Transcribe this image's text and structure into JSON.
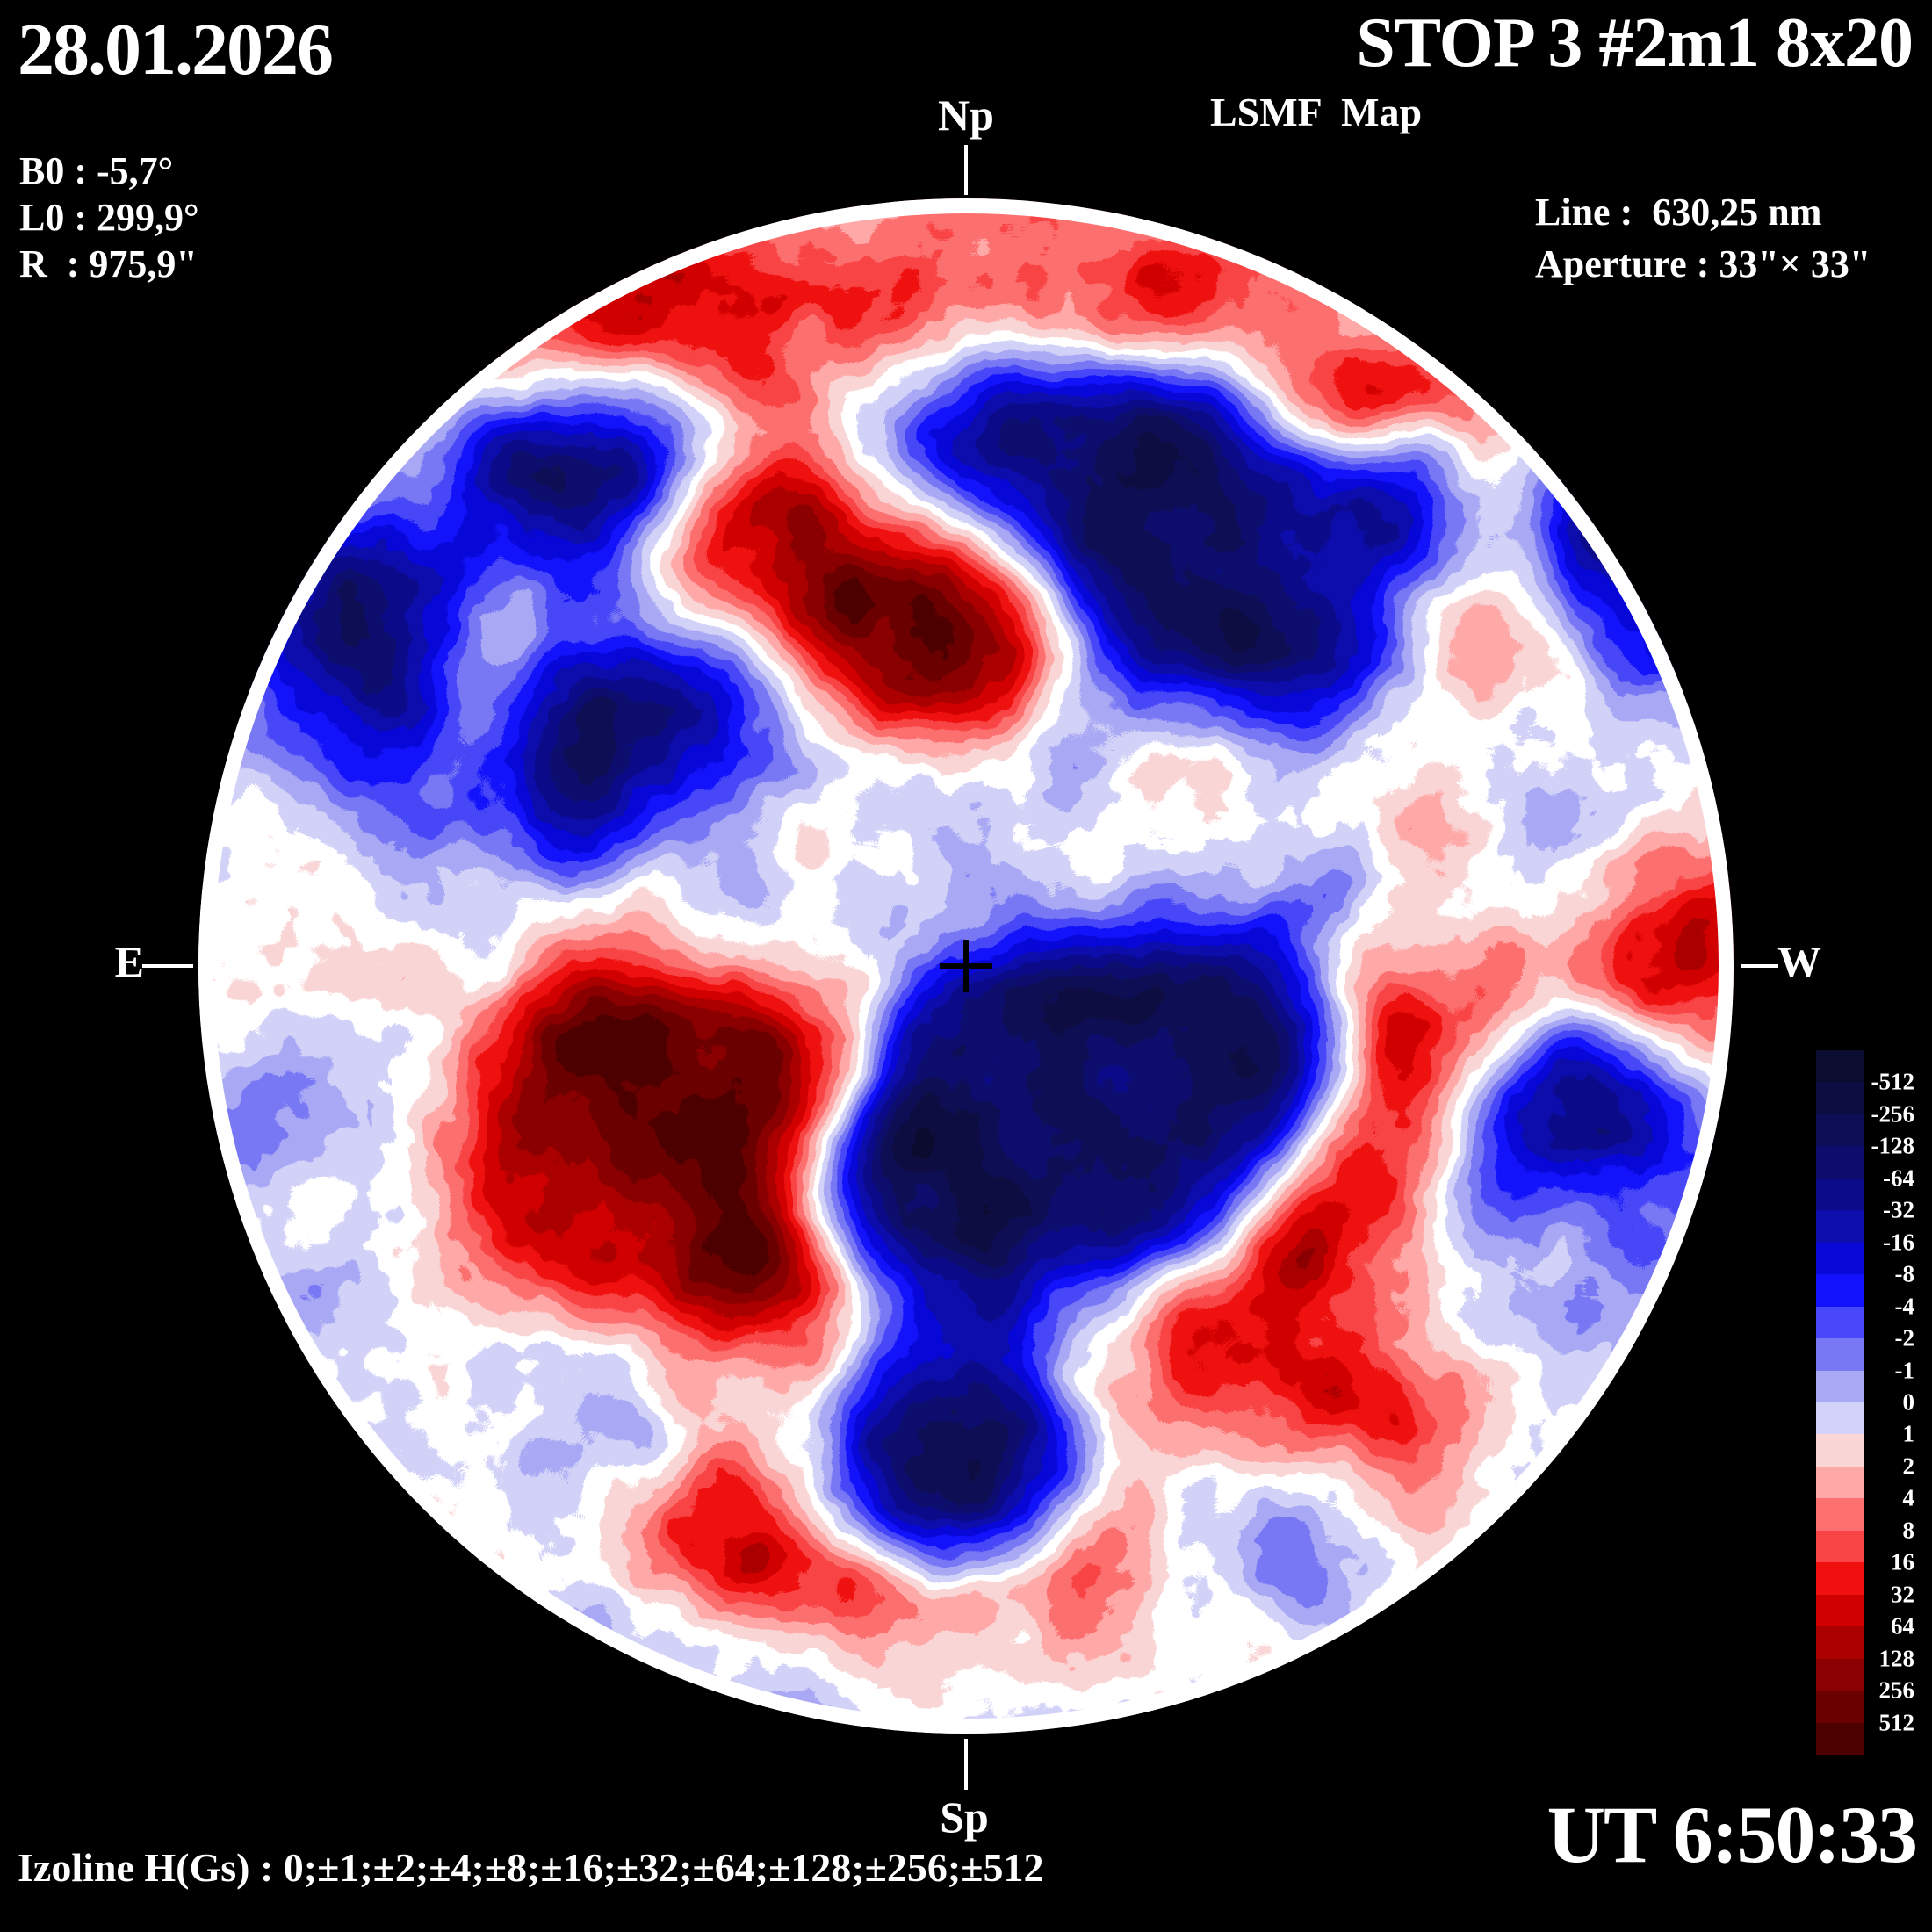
{
  "header": {
    "date": "28.01.2026",
    "b0": "B0 : -5,7°",
    "l0": "L0 : 299,9°",
    "r": "R  : 975,9\"",
    "title": "STOP 3 #2m1 8x20",
    "subtitle": "LSMF  Map",
    "line": "Line :  630,25 nm",
    "aperture": "Aperture : 33\"× 33\""
  },
  "directions": {
    "north": "Np",
    "south": "Sp",
    "east": "E",
    "west": "W"
  },
  "footer": {
    "izoline": "Izoline H(Gs) : 0;±1;±2;±4;±8;±16;±32;±64;±128;±256;±512",
    "time": "UT 6:50:33"
  },
  "colorbar": {
    "labels": [
      "-512",
      "-256",
      "-128",
      "-64",
      "-32",
      "-16",
      "-8",
      "-4",
      "-2",
      "-1",
      "0",
      "1",
      "2",
      "4",
      "8",
      "16",
      "32",
      "64",
      "128",
      "256",
      "512"
    ],
    "swatches": [
      "#0c0c30",
      "#0d0d42",
      "#0e0e56",
      "#0d0d6e",
      "#0c0c8a",
      "#0d0dad",
      "#0808d8",
      "#1212fc",
      "#4848f8",
      "#7878f4",
      "#a8a8f4",
      "#d2d2fa",
      "#fad6d6",
      "#ffa8a8",
      "#fc7070",
      "#f84444",
      "#f01010",
      "#d00000",
      "#ab0000",
      "#8b0000",
      "#6b0000",
      "#4d0000"
    ]
  },
  "chart_data": {
    "type": "heatmap",
    "title": "STOP 3 #2m1 8x20 — LSMF Map",
    "description": "Full-disk solar line-of-sight magnetic field contour map; blue = negative polarity (Gs), red = positive polarity (Gs), thick white contour at 0 Gs, disk outlined in white on black background, black cross at disk center",
    "izoline_levels_gauss": [
      0,
      1,
      2,
      4,
      8,
      16,
      32,
      64,
      128,
      256,
      512
    ],
    "scale_levels_gauss": [
      -512,
      -256,
      -128,
      -64,
      -32,
      -16,
      -8,
      -4,
      -2,
      -1,
      0,
      1,
      2,
      4,
      8,
      16,
      32,
      64,
      128,
      256,
      512
    ],
    "scale_colors": [
      "#0c0c30",
      "#0d0d42",
      "#0e0e56",
      "#0d0d6e",
      "#0c0c8a",
      "#0d0dad",
      "#0808d8",
      "#1212fc",
      "#4848f8",
      "#7878f4",
      "#a8a8f4",
      "#d2d2fa",
      "#fad6d6",
      "#ffa8a8",
      "#fc7070",
      "#f84444",
      "#f01010",
      "#d00000",
      "#ab0000",
      "#8b0000",
      "#6b0000",
      "#4d0000"
    ],
    "legend_position": "right",
    "orientation_labels": {
      "top": "Np",
      "bottom": "Sp",
      "left": "E",
      "right": "W"
    },
    "observation": {
      "date": "28.01.2026",
      "time_ut": "6:50:33",
      "b0_deg": -5.7,
      "l0_deg": 299.9,
      "radius_arcsec": 975.9,
      "spectral_line_nm": 630.25,
      "aperture": "33\"×33\""
    }
  }
}
